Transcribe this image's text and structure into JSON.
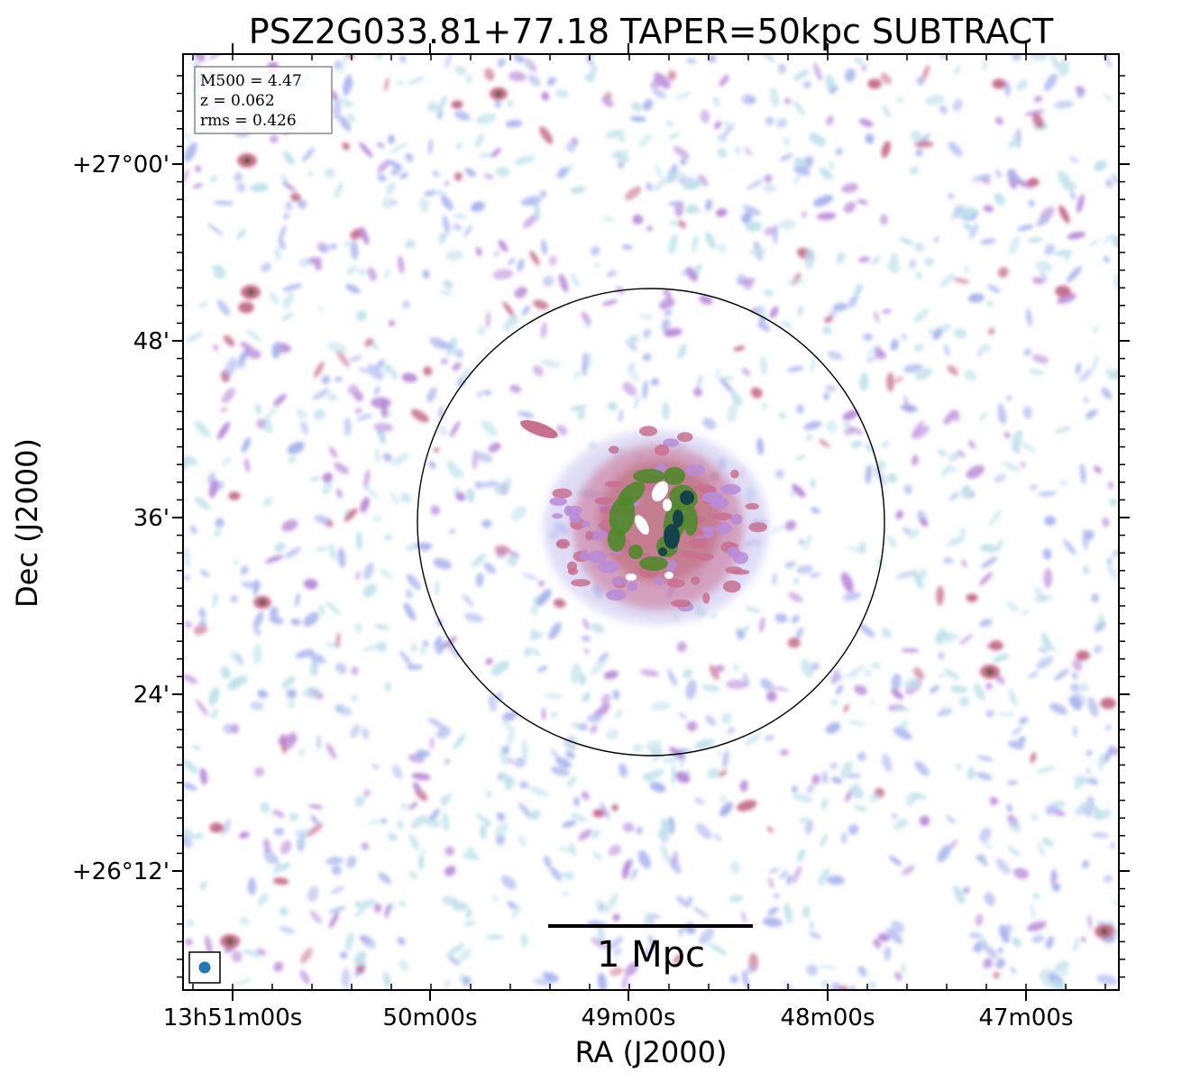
{
  "chart_data": {
    "type": "heatmap",
    "title": "PSZ2G033.81+77.18 TAPER=50kpc SUBTRACT",
    "xlabel": "RA (J2000)",
    "ylabel": "Dec (J2000)",
    "x_ticks": [
      "13h51m00s",
      "50m00s",
      "49m00s",
      "48m00s",
      "47m00s"
    ],
    "y_ticks": [
      "+27°00'",
      "48'",
      "36'",
      "24'",
      "+26°12'"
    ],
    "info_box": [
      "M500 = 4.47",
      "z = 0.062",
      "rms = 0.426"
    ],
    "scale_bar_label": "1 Mpc",
    "colormap": "cubehelix (light blue / purple / pink / green / dark teal)",
    "colors": {
      "faint": "#bfe3ea",
      "low": "#a9b6ee",
      "mid": "#b88bd8",
      "high": "#c8708e",
      "peak": "#4f8a2a",
      "core": "#15434a",
      "beam": "#1f77b4"
    },
    "grid": false
  }
}
